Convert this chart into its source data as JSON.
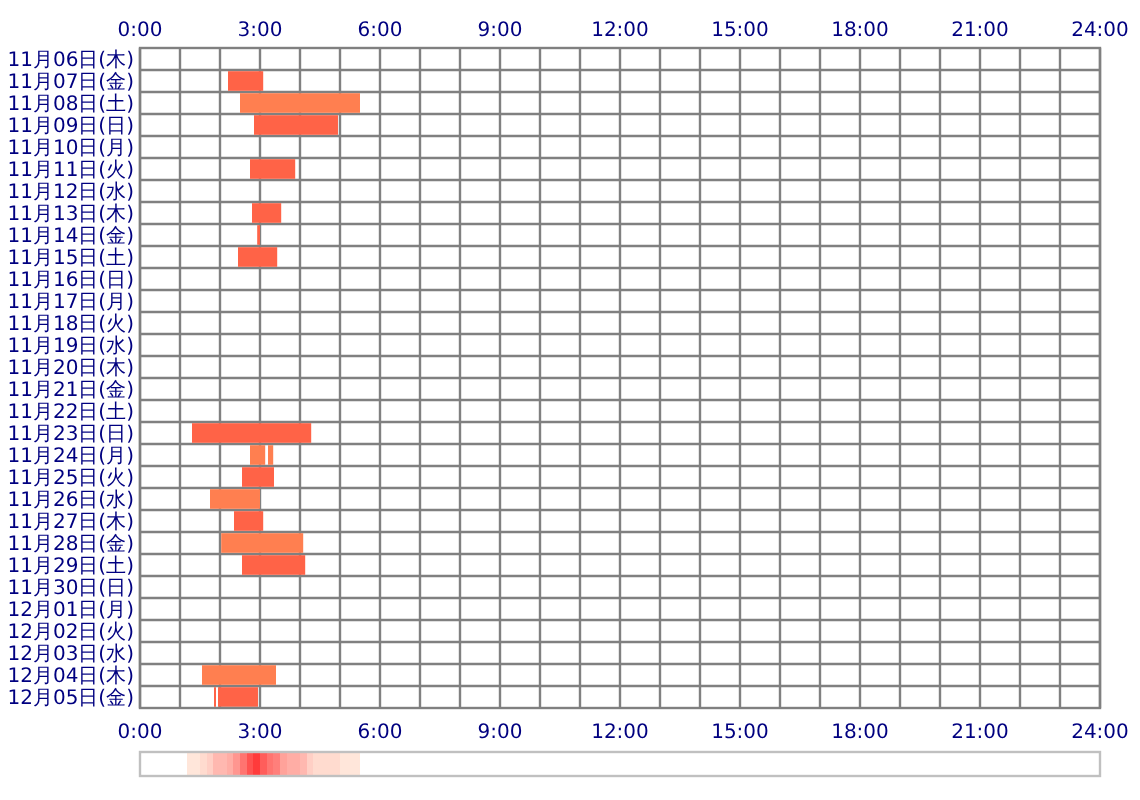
{
  "chart_data": {
    "type": "bar",
    "orientation": "horizontal",
    "categories": [
      "11月06日(木)",
      "11月07日(金)",
      "11月08日(土)",
      "11月09日(日)",
      "11月10日(月)",
      "11月11日(火)",
      "11月12日(水)",
      "11月13日(木)",
      "11月14日(金)",
      "11月15日(土)",
      "11月16日(日)",
      "11月17日(月)",
      "11月18日(火)",
      "11月19日(水)",
      "11月20日(木)",
      "11月21日(金)",
      "11月22日(土)",
      "11月23日(日)",
      "11月24日(月)",
      "11月25日(火)",
      "11月26日(水)",
      "11月27日(木)",
      "11月28日(金)",
      "11月29日(土)",
      "11月30日(日)",
      "12月01日(月)",
      "12月02日(火)",
      "12月03日(水)",
      "12月04日(木)",
      "12月05日(金)"
    ],
    "series": [
      {
        "values": [
          null,
          0.88,
          3.0,
          2.1,
          null,
          1.13,
          null,
          0.73,
          0.07,
          0.98,
          null,
          null,
          null,
          null,
          null,
          null,
          null,
          2.98,
          0.38,
          0.8,
          1.25,
          0.73,
          2.05,
          1.58,
          null,
          null,
          null,
          null,
          1.85,
          1.0
        ],
        "base": [
          null,
          2.2,
          2.5,
          2.85,
          null,
          2.75,
          null,
          2.8,
          2.93,
          2.45,
          null,
          null,
          null,
          null,
          null,
          null,
          null,
          1.3,
          2.75,
          2.55,
          1.75,
          2.35,
          2.03,
          2.55,
          null,
          null,
          null,
          null,
          1.55,
          1.95
        ],
        "colors": [
          null,
          "#ff6347",
          "#ff7f50",
          "#ff6347",
          null,
          "#ff6347",
          null,
          "#ff6347",
          "#ff6347",
          "#ff6347",
          null,
          null,
          null,
          null,
          null,
          null,
          null,
          "#ff6347",
          "#ff7f50",
          "#ff6347",
          "#ff7f50",
          "#ff6347",
          "#ff7f50",
          "#ff6347",
          null,
          null,
          null,
          null,
          "#ff7f50",
          "#ff6347"
        ]
      },
      {
        "values": [
          null,
          null,
          null,
          null,
          null,
          null,
          null,
          null,
          null,
          null,
          null,
          null,
          null,
          null,
          null,
          null,
          null,
          null,
          0.13,
          null,
          null,
          null,
          null,
          null,
          null,
          null,
          null,
          null,
          null,
          0.05
        ],
        "base": [
          null,
          null,
          null,
          null,
          null,
          null,
          null,
          null,
          null,
          null,
          null,
          null,
          null,
          null,
          null,
          null,
          null,
          null,
          3.2,
          null,
          null,
          null,
          null,
          null,
          null,
          null,
          null,
          null,
          null,
          1.85
        ],
        "colors": [
          null,
          null,
          null,
          null,
          null,
          null,
          null,
          null,
          null,
          null,
          null,
          null,
          null,
          null,
          null,
          null,
          null,
          null,
          "#ff7f50",
          null,
          null,
          null,
          null,
          null,
          null,
          null,
          null,
          null,
          null,
          "#ff6347"
        ]
      }
    ],
    "xlim": [
      0,
      24
    ],
    "xticks": [
      {
        "value": 0,
        "label": "0:00"
      },
      {
        "value": 1,
        "label": null
      },
      {
        "value": 2,
        "label": null
      },
      {
        "value": 3,
        "label": "3:00"
      },
      {
        "value": 4,
        "label": null
      },
      {
        "value": 5,
        "label": null
      },
      {
        "value": 6,
        "label": "6:00"
      },
      {
        "value": 7,
        "label": null
      },
      {
        "value": 8,
        "label": null
      },
      {
        "value": 9,
        "label": "9:00"
      },
      {
        "value": 10,
        "label": null
      },
      {
        "value": 11,
        "label": null
      },
      {
        "value": 12,
        "label": "12:00"
      },
      {
        "value": 13,
        "label": null
      },
      {
        "value": 14,
        "label": null
      },
      {
        "value": 15,
        "label": "15:00"
      },
      {
        "value": 16,
        "label": null
      },
      {
        "value": 17,
        "label": null
      },
      {
        "value": 18,
        "label": "18:00"
      },
      {
        "value": 19,
        "label": null
      },
      {
        "value": 20,
        "label": null
      },
      {
        "value": 21,
        "label": "21:00"
      },
      {
        "value": 22,
        "label": null
      },
      {
        "value": 23,
        "label": null
      },
      {
        "value": 24,
        "label": "24:00"
      }
    ],
    "x2lim": [
      0,
      24
    ],
    "x2ticks": [
      {
        "value": 0,
        "label": "0:00"
      },
      {
        "value": 3,
        "label": "3:00"
      },
      {
        "value": 6,
        "label": "6:00"
      },
      {
        "value": 9,
        "label": "9:00"
      },
      {
        "value": 12,
        "label": "12:00"
      },
      {
        "value": 15,
        "label": "15:00"
      },
      {
        "value": 18,
        "label": "18:00"
      },
      {
        "value": 21,
        "label": "21:00"
      },
      {
        "value": 24,
        "label": "24:00"
      }
    ],
    "grid": true
  }
}
